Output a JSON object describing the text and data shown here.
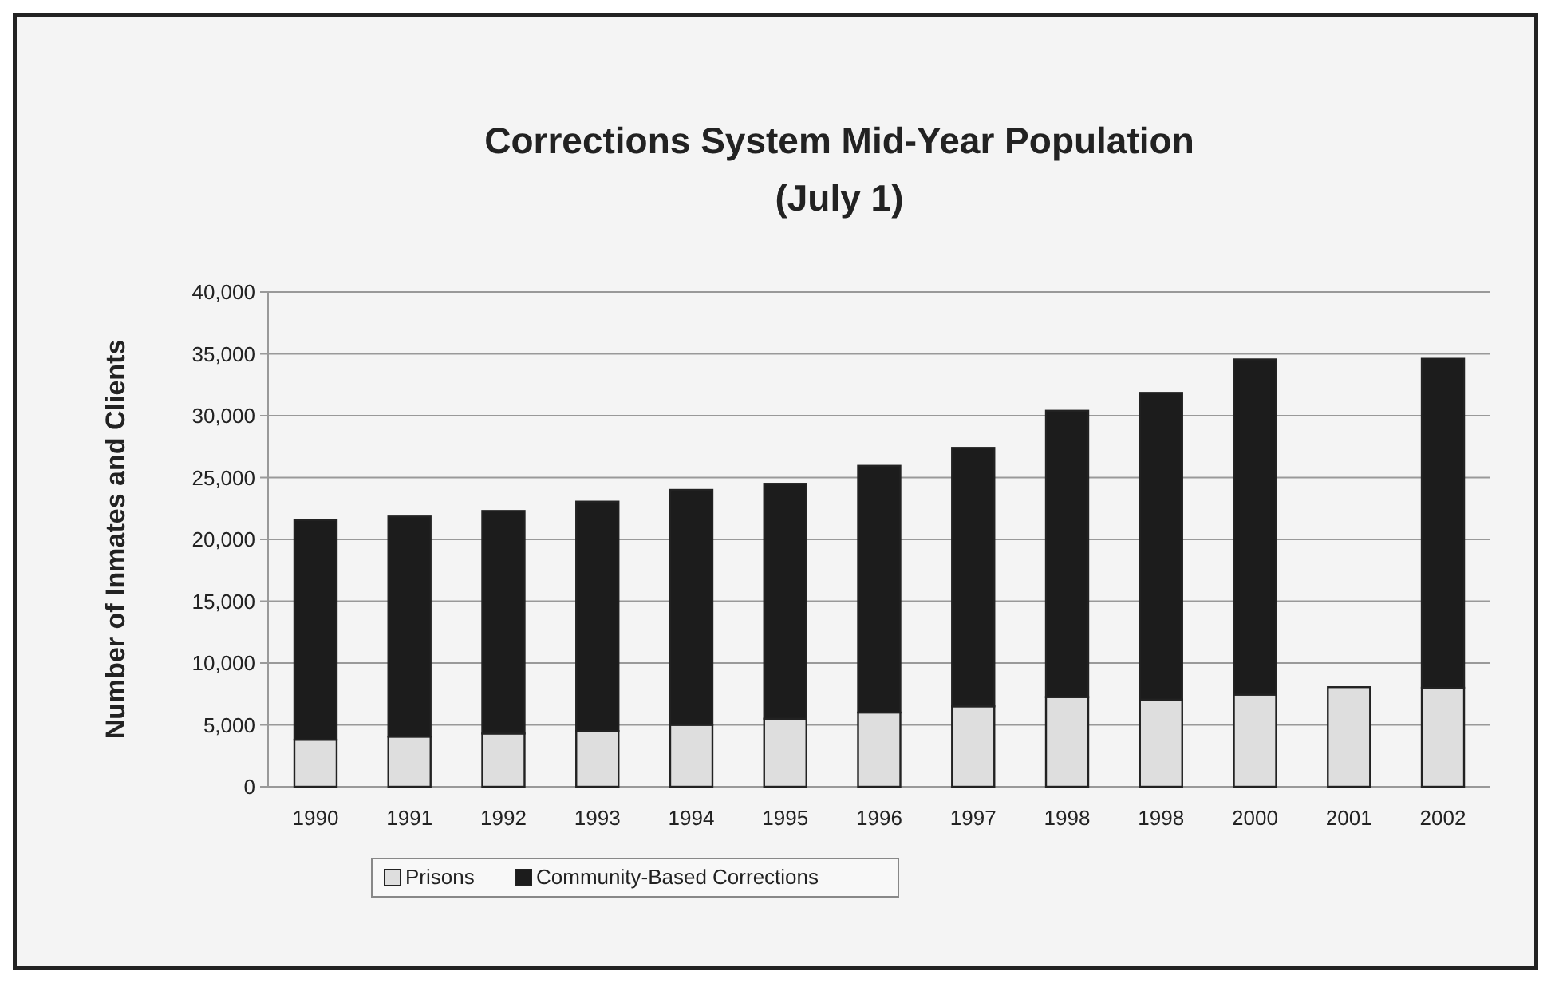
{
  "chart_data": {
    "type": "bar",
    "title": "Corrections System Mid-Year Population",
    "subtitle": "(July 1)",
    "ylabel": "Number of Inmates and Clients",
    "categories": [
      "1990",
      "1991",
      "1992",
      "1993",
      "1994",
      "1995",
      "1996",
      "1997",
      "1998",
      "1998",
      "2000",
      "2001",
      "2002"
    ],
    "stacked": true,
    "series": [
      {
        "name": "Prisons",
        "color": "#dedede",
        "values": [
          3800,
          4050,
          4300,
          4500,
          5000,
          5500,
          6000,
          6500,
          7250,
          7050,
          7450,
          8050,
          8000
        ]
      },
      {
        "name": "Community-Based Corrections",
        "color": "#1c1c1c",
        "values": [
          17750,
          17800,
          18000,
          18550,
          19000,
          19000,
          19950,
          20900,
          23150,
          24800,
          27100,
          null,
          26600
        ]
      }
    ],
    "ylim": [
      0,
      40000
    ],
    "yticks": [
      {
        "value": 0,
        "label": "0"
      },
      {
        "value": 5000,
        "label": "5,000"
      },
      {
        "value": 10000,
        "label": "10,000"
      },
      {
        "value": 15000,
        "label": "15,000"
      },
      {
        "value": 20000,
        "label": "20,000"
      },
      {
        "value": 25000,
        "label": "25,000"
      },
      {
        "value": 30000,
        "label": "30,000"
      },
      {
        "value": 35000,
        "label": "35,000"
      },
      {
        "value": 40000,
        "label": "40,000"
      }
    ],
    "grid": "y",
    "legend": "bottom"
  }
}
